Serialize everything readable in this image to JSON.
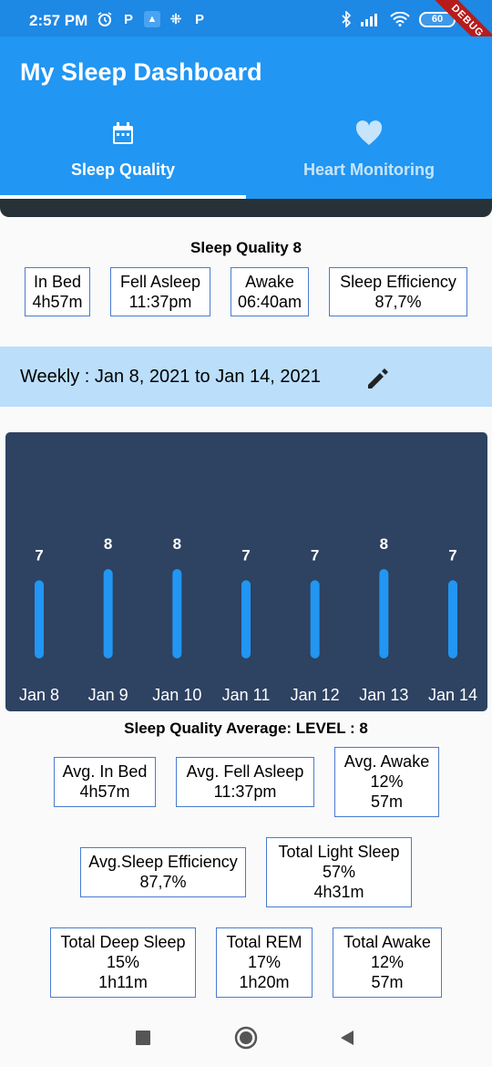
{
  "status_bar": {
    "time": "2:57 PM",
    "left_icons": [
      "alarm-icon",
      "p-app-icon",
      "image-app-icon",
      "slack-icon",
      "p-app-icon"
    ],
    "right_icons": [
      "bluetooth-icon",
      "signal-icon",
      "wifi-icon"
    ],
    "battery": "60",
    "debug_banner": "DEBUG"
  },
  "app_bar": {
    "title": "My Sleep Dashboard",
    "tabs": [
      {
        "label": "Sleep Quality",
        "icon": "calendar-icon",
        "selected": true
      },
      {
        "label": "Heart Monitoring",
        "icon": "heart-icon",
        "selected": false
      }
    ]
  },
  "sleep_summary": {
    "title": "Sleep Quality 8",
    "stats": [
      {
        "label": "In Bed",
        "value": "4h57m"
      },
      {
        "label": "Fell Asleep",
        "value": "11:37pm"
      },
      {
        "label": "Awake",
        "value": "06:40am"
      },
      {
        "label": "Sleep Efficiency",
        "value": "87,7%"
      }
    ]
  },
  "weekly": {
    "range_text": "Weekly : Jan 8, 2021 to Jan 14, 2021",
    "edit_icon": "pencil-icon"
  },
  "chart_data": {
    "type": "bar",
    "categories": [
      "Jan 8",
      "Jan 9",
      "Jan 10",
      "Jan 11",
      "Jan 12",
      "Jan 13",
      "Jan 14"
    ],
    "values": [
      7,
      8,
      8,
      7,
      7,
      8,
      7
    ],
    "ylim": [
      0,
      8
    ],
    "grid": false,
    "colors": {
      "bar": "#2196f3",
      "background": "#2e4262",
      "text": "#ffffff"
    }
  },
  "averages": {
    "title": "Sleep Quality Average: LEVEL : 8",
    "row1": [
      {
        "label": "Avg. In Bed",
        "value": "4h57m"
      },
      {
        "label": "Avg. Fell Asleep",
        "value": "11:37pm"
      },
      {
        "label": "Avg. Awake",
        "percent": "12%",
        "value": "57m"
      }
    ],
    "row2": [
      {
        "label": "Avg.Sleep Efficiency",
        "value": "87,7%"
      },
      {
        "label": "Total Light Sleep",
        "percent": "57%",
        "value": "4h31m"
      }
    ],
    "row3": [
      {
        "label": "Total Deep Sleep",
        "percent": "15%",
        "value": "1h11m"
      },
      {
        "label": "Total REM",
        "percent": "17%",
        "value": "1h20m"
      },
      {
        "label": "Total Awake",
        "percent": "12%",
        "value": "57m"
      }
    ]
  },
  "nav_bar": {
    "buttons": [
      "recents-square-icon",
      "home-circle-icon",
      "back-triangle-icon"
    ]
  }
}
